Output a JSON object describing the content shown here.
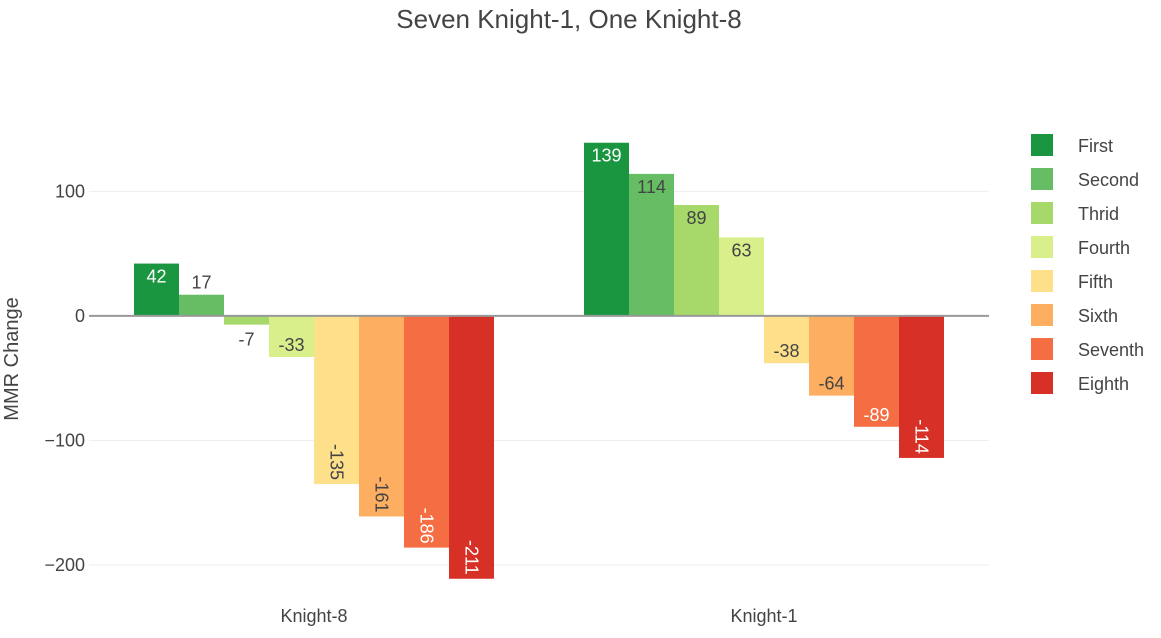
{
  "chart_data": {
    "type": "bar",
    "title": "Seven Knight-1, One Knight-8",
    "xlabel": "",
    "ylabel": "MMR Change",
    "categories": [
      "Knight-8",
      "Knight-1"
    ],
    "ylim": [
      -212,
      142
    ],
    "yticks": [
      {
        "value": 100,
        "label": "100"
      },
      {
        "value": 0,
        "label": "0"
      },
      {
        "value": -100,
        "label": "−100"
      },
      {
        "value": -200,
        "label": "−200"
      }
    ],
    "grid": true,
    "legend_position": "right",
    "series": [
      {
        "name": "First",
        "color": "#1a9641",
        "values": [
          42,
          139
        ],
        "labels": [
          "42",
          "139"
        ]
      },
      {
        "name": "Second",
        "color": "#66bd63",
        "values": [
          17,
          114
        ],
        "labels": [
          "17",
          "114"
        ]
      },
      {
        "name": "Thrid",
        "color": "#a6d96a",
        "values": [
          -7,
          89
        ],
        "labels": [
          "-7",
          "89"
        ]
      },
      {
        "name": "Fourth",
        "color": "#d9ef8b",
        "values": [
          -33,
          63
        ],
        "labels": [
          "-33",
          "63"
        ]
      },
      {
        "name": "Fifth",
        "color": "#fee08b",
        "values": [
          -135,
          -38
        ],
        "labels": [
          "-135",
          "-38"
        ]
      },
      {
        "name": "Sixth",
        "color": "#fdae61",
        "values": [
          -161,
          -64
        ],
        "labels": [
          "-161",
          "-64"
        ]
      },
      {
        "name": "Seventh",
        "color": "#f46d43",
        "values": [
          -186,
          -89
        ],
        "labels": [
          "-186",
          "-89"
        ]
      },
      {
        "name": "Eighth",
        "color": "#d73027",
        "values": [
          -211,
          -114
        ],
        "labels": [
          "-211",
          "-114"
        ]
      }
    ]
  }
}
